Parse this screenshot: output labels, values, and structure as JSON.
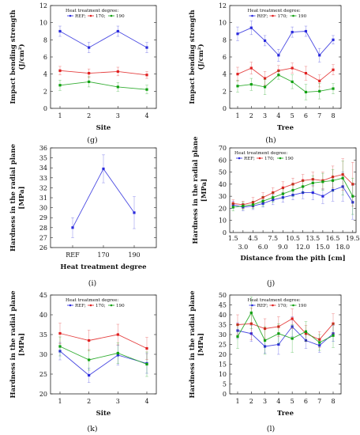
{
  "colors": {
    "REF": "#2a2add",
    "170": "#e02020",
    "190": "#10a010"
  },
  "legend": {
    "title": "Heat treatment degree:",
    "labels": [
      "REF;",
      "170;",
      "190"
    ]
  },
  "chart_data": [
    {
      "id": "g",
      "type": "line",
      "caption": "(g)",
      "xlabel": "Site",
      "ylabel": "Impact bending strength (J/cm²)",
      "ylim": [
        0,
        12
      ],
      "yticks": [
        0,
        2,
        4,
        6,
        8,
        10,
        12
      ],
      "categories": [
        "1",
        "2",
        "3",
        "4"
      ],
      "legend_position": "top-center",
      "series": [
        {
          "name": "REF",
          "values": [
            9.0,
            7.1,
            9.0,
            7.1
          ],
          "err": [
            0.6,
            0.6,
            0.6,
            0.6
          ]
        },
        {
          "name": "170",
          "values": [
            4.4,
            4.1,
            4.3,
            3.9
          ],
          "err": [
            0.5,
            0.5,
            0.5,
            0.4
          ]
        },
        {
          "name": "190",
          "values": [
            2.7,
            3.1,
            2.5,
            2.2
          ],
          "err": [
            0.6,
            0.6,
            0.5,
            0.5
          ]
        }
      ]
    },
    {
      "id": "h",
      "type": "line",
      "caption": "(h)",
      "xlabel": "Tree",
      "ylabel": "Impact bending strength (J/cm²)",
      "ylim": [
        0,
        12
      ],
      "yticks": [
        0,
        2,
        4,
        6,
        8,
        10,
        12
      ],
      "categories": [
        "1",
        "2",
        "3",
        "4",
        "5",
        "6",
        "7",
        "8"
      ],
      "legend_position": "top-center",
      "series": [
        {
          "name": "REF",
          "values": [
            8.7,
            9.4,
            7.9,
            6.2,
            8.9,
            9.0,
            6.2,
            8.0
          ],
          "err": [
            0.8,
            0.8,
            0.6,
            0.7,
            0.6,
            0.6,
            0.8,
            0.5
          ]
        },
        {
          "name": "170",
          "values": [
            4.0,
            4.7,
            3.5,
            4.4,
            4.7,
            4.1,
            3.2,
            4.5
          ],
          "err": [
            0.8,
            0.7,
            0.8,
            0.6,
            0.6,
            0.8,
            0.7,
            0.6
          ]
        },
        {
          "name": "190",
          "values": [
            2.6,
            2.8,
            2.5,
            3.9,
            3.1,
            1.9,
            2.0,
            2.3
          ],
          "err": [
            0.7,
            0.7,
            0.9,
            0.5,
            0.8,
            0.9,
            0.9,
            0.6
          ]
        }
      ]
    },
    {
      "id": "i",
      "type": "line",
      "caption": "(i)",
      "xlabel": "Heat treatment degree",
      "ylabel": "Hardness in the radial plane [MPa]",
      "ylim": [
        26,
        36
      ],
      "yticks": [
        26,
        27,
        28,
        29,
        30,
        31,
        32,
        33,
        34,
        35,
        36
      ],
      "categories": [
        "REF",
        "170",
        "190"
      ],
      "series": [
        {
          "values": [
            28.0,
            33.9,
            29.5
          ],
          "err": [
            1.0,
            1.4,
            1.6
          ]
        }
      ]
    },
    {
      "id": "j",
      "type": "line",
      "caption": "(j)",
      "xlabel": "Distance from the pith [cm]",
      "ylabel": "Hardness in the radial plane [MPa]",
      "ylim": [
        0,
        70
      ],
      "yticks": [
        0,
        10,
        20,
        30,
        40,
        50,
        60,
        70
      ],
      "xlim": [
        1.0,
        20.0
      ],
      "xticks_top": [
        1.5,
        4.5,
        7.5,
        10.5,
        13.5,
        16.5,
        19.5
      ],
      "xticks_bottom": [
        3.0,
        6.0,
        9.0,
        12.0,
        15.0,
        18.0
      ],
      "legend_position": "top-left",
      "x": [
        1.5,
        3.0,
        4.5,
        6.0,
        7.5,
        9.0,
        10.5,
        12.0,
        13.5,
        15.0,
        16.5,
        18.0,
        19.5
      ],
      "series": [
        {
          "name": "REF",
          "values": [
            23,
            21,
            22,
            24,
            27,
            29,
            31,
            33,
            33,
            30,
            35,
            38,
            25
          ],
          "err": [
            3,
            3,
            3,
            3,
            4,
            4,
            4,
            5,
            6,
            6,
            9,
            12,
            14
          ]
        },
        {
          "name": "170",
          "values": [
            24,
            23,
            25,
            29,
            33,
            37,
            40,
            43,
            44,
            43,
            46,
            48,
            40
          ],
          "err": [
            3,
            3,
            4,
            4,
            4,
            5,
            5,
            5,
            6,
            7,
            9,
            13,
            18
          ]
        },
        {
          "name": "190",
          "values": [
            21,
            22,
            23,
            26,
            29,
            32,
            35,
            38,
            41,
            42,
            43,
            45,
            30
          ],
          "err": [
            3,
            3,
            3,
            4,
            4,
            4,
            5,
            5,
            6,
            7,
            9,
            14,
            15
          ]
        }
      ]
    },
    {
      "id": "k",
      "type": "line",
      "caption": "(k)",
      "xlabel": "Site",
      "ylabel": "Hardness in the radial plane [MPa]",
      "ylim": [
        20,
        45
      ],
      "yticks": [
        20,
        25,
        30,
        35,
        40,
        45
      ],
      "categories": [
        "1",
        "2",
        "3",
        "4"
      ],
      "legend_position": "top-center",
      "series": [
        {
          "name": "REF",
          "values": [
            30.8,
            24.7,
            29.8,
            27.7
          ],
          "err": [
            2.2,
            1.8,
            2.5,
            2.5
          ]
        },
        {
          "name": "170",
          "values": [
            35.3,
            33.5,
            35.0,
            31.5
          ],
          "err": [
            2.6,
            2.6,
            2.6,
            2.8
          ]
        },
        {
          "name": "190",
          "values": [
            32.0,
            28.6,
            30.3,
            27.5
          ],
          "err": [
            2.4,
            2.6,
            2.6,
            3.1
          ]
        }
      ]
    },
    {
      "id": "l",
      "type": "line",
      "caption": "(l)",
      "xlabel": "Tree",
      "ylabel": "Hardness in the radial plane [MPa]",
      "ylim": [
        0,
        50
      ],
      "yticks": [
        0,
        5,
        10,
        15,
        20,
        25,
        30,
        35,
        40,
        45,
        50
      ],
      "categories": [
        "1",
        "2",
        "3",
        "4",
        "5",
        "6",
        "7",
        "8"
      ],
      "legend_position": "top-center",
      "series": [
        {
          "name": "REF",
          "values": [
            32.0,
            30.5,
            24.0,
            25.0,
            34.0,
            27.0,
            24.5,
            30.5
          ],
          "err": [
            4,
            4,
            3.5,
            5,
            5,
            4,
            3.5,
            4
          ]
        },
        {
          "name": "170",
          "values": [
            35.0,
            35.5,
            33.0,
            34.0,
            38.0,
            30.5,
            27.5,
            35.5
          ],
          "err": [
            5,
            8,
            5,
            5,
            5,
            4,
            4,
            5
          ]
        },
        {
          "name": "190",
          "values": [
            29.0,
            41.0,
            27.0,
            30.5,
            28.0,
            31.5,
            26.0,
            29.5
          ],
          "err": [
            6,
            8,
            7,
            5,
            7,
            5,
            4,
            6
          ]
        }
      ]
    }
  ]
}
